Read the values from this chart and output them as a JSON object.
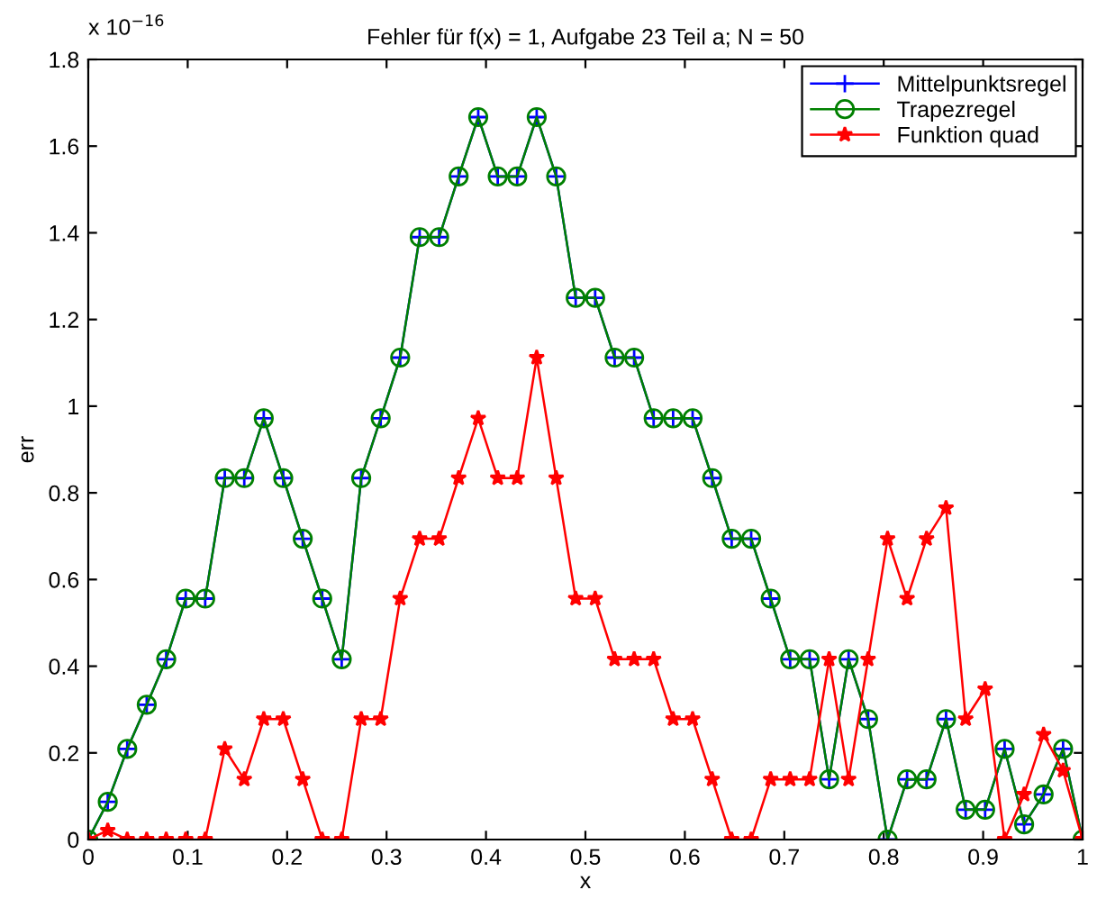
{
  "chart_data": {
    "type": "line",
    "title": "Fehler für f(x) = 1, Aufgabe 23 Teil a; N = 50",
    "xlabel": "x",
    "ylabel": "err",
    "annotations": [
      "x 10$^{−16}$"
    ],
    "x": [
      0,
      0.0196,
      0.0392,
      0.0588,
      0.0784,
      0.098,
      0.1176,
      0.1373,
      0.1569,
      0.1765,
      0.1961,
      0.2157,
      0.2353,
      0.2549,
      0.2745,
      0.2941,
      0.3137,
      0.3333,
      0.3529,
      0.3725,
      0.3922,
      0.4118,
      0.4314,
      0.451,
      0.4706,
      0.4902,
      0.5098,
      0.5294,
      0.549,
      0.5686,
      0.5882,
      0.6078,
      0.6275,
      0.6471,
      0.6667,
      0.6863,
      0.7059,
      0.7255,
      0.7451,
      0.7647,
      0.7843,
      0.8039,
      0.8235,
      0.8431,
      0.8627,
      0.8824,
      0.902,
      0.9216,
      0.9412,
      0.9608,
      0.9804,
      1
    ],
    "series": [
      {
        "name": "Mittelpunktsregel",
        "color": "#0000ff",
        "marker": "cross",
        "values": [
          0,
          0.087,
          0.209,
          0.311,
          0.416,
          0.556,
          0.556,
          0.834,
          0.834,
          0.972,
          0.834,
          0.694,
          0.556,
          0.416,
          0.834,
          0.972,
          1.112,
          1.39,
          1.39,
          1.53,
          1.667,
          1.53,
          1.53,
          1.667,
          1.53,
          1.25,
          1.25,
          1.112,
          1.112,
          0.972,
          0.972,
          0.972,
          0.834,
          0.694,
          0.694,
          0.556,
          0.416,
          0.416,
          0.139,
          0.416,
          0.278,
          0,
          0.139,
          0.139,
          0.278,
          0.069,
          0.069,
          0.209,
          0.035,
          0.104,
          0.209,
          0
        ]
      },
      {
        "name": "Trapezregel",
        "color": "#008000",
        "marker": "circle",
        "values": [
          0,
          0.087,
          0.209,
          0.311,
          0.416,
          0.556,
          0.556,
          0.834,
          0.834,
          0.972,
          0.834,
          0.694,
          0.556,
          0.416,
          0.834,
          0.972,
          1.112,
          1.39,
          1.39,
          1.53,
          1.667,
          1.53,
          1.53,
          1.667,
          1.53,
          1.25,
          1.25,
          1.112,
          1.112,
          0.972,
          0.972,
          0.972,
          0.834,
          0.694,
          0.694,
          0.556,
          0.416,
          0.416,
          0.139,
          0.416,
          0.278,
          0,
          0.139,
          0.139,
          0.278,
          0.069,
          0.069,
          0.209,
          0.035,
          0.104,
          0.209,
          0
        ]
      },
      {
        "name": "Funktion quad",
        "color": "#ff0000",
        "marker": "star",
        "values": [
          0,
          0.021,
          0,
          0,
          0,
          0,
          0,
          0.209,
          0.139,
          0.278,
          0.278,
          0.139,
          0,
          0,
          0.278,
          0.278,
          0.556,
          0.694,
          0.694,
          0.834,
          0.972,
          0.834,
          0.834,
          1.112,
          0.834,
          0.556,
          0.556,
          0.416,
          0.416,
          0.416,
          0.278,
          0.278,
          0.139,
          0,
          0,
          0.139,
          0.139,
          0.139,
          0.416,
          0.139,
          0.416,
          0.694,
          0.556,
          0.694,
          0.765,
          0.278,
          0.347,
          0,
          0.104,
          0.242,
          0.159,
          0
        ]
      }
    ],
    "xlim": [
      0,
      1
    ],
    "xticks": [
      0,
      0.1,
      0.2,
      0.3,
      0.4,
      0.5,
      0.6,
      0.7,
      0.8,
      0.9,
      1
    ],
    "ylim": [
      0,
      1.8
    ],
    "yticks": [
      0,
      0.2,
      0.4,
      0.6,
      0.8,
      1,
      1.2,
      1.4,
      1.6,
      1.8
    ],
    "legend": "top right",
    "grid": false,
    "line_style": "solid"
  }
}
